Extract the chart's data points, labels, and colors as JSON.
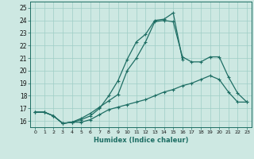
{
  "xlabel": "Humidex (Indice chaleur)",
  "x_ticks": [
    0,
    1,
    2,
    3,
    4,
    5,
    6,
    7,
    8,
    9,
    10,
    11,
    12,
    13,
    14,
    15,
    16,
    17,
    18,
    19,
    20,
    21,
    22,
    23
  ],
  "ylim": [
    15.5,
    25.5
  ],
  "xlim": [
    -0.5,
    23.5
  ],
  "yticks": [
    16,
    17,
    18,
    19,
    20,
    21,
    22,
    23,
    24,
    25
  ],
  "bg_color": "#cde8e2",
  "line_color": "#1e6e64",
  "line1_x": [
    0,
    1,
    2,
    3,
    4,
    5,
    6,
    7,
    8,
    9,
    10,
    11,
    12,
    13,
    14,
    15,
    16,
    17,
    18,
    19,
    20,
    21,
    22,
    23
  ],
  "line1_y": [
    16.7,
    16.7,
    16.4,
    15.8,
    15.9,
    15.9,
    16.1,
    16.5,
    16.9,
    17.1,
    17.3,
    17.5,
    17.7,
    18.0,
    18.3,
    18.5,
    18.8,
    19.0,
    19.3,
    19.6,
    19.3,
    18.3,
    17.5,
    17.5
  ],
  "line2_x": [
    0,
    1,
    2,
    3,
    4,
    5,
    6,
    7,
    8,
    9,
    10,
    11,
    12,
    13,
    14,
    15,
    16,
    17,
    18,
    19,
    20,
    21,
    22,
    23
  ],
  "line2_y": [
    16.7,
    16.7,
    16.4,
    15.8,
    15.9,
    16.2,
    16.6,
    17.1,
    17.6,
    18.1,
    20.0,
    21.0,
    22.3,
    23.9,
    24.0,
    23.9,
    21.1,
    20.7,
    20.7,
    21.1,
    21.1,
    19.5,
    18.2,
    17.5
  ],
  "line3_x": [
    0,
    1,
    2,
    3,
    4,
    5,
    6,
    7,
    8,
    9,
    10,
    11,
    12,
    13,
    14,
    15,
    16
  ],
  "line3_y": [
    16.7,
    16.7,
    16.4,
    15.8,
    15.9,
    16.1,
    16.4,
    17.0,
    18.0,
    19.2,
    20.9,
    22.3,
    22.9,
    24.0,
    24.1,
    24.6,
    20.9
  ]
}
